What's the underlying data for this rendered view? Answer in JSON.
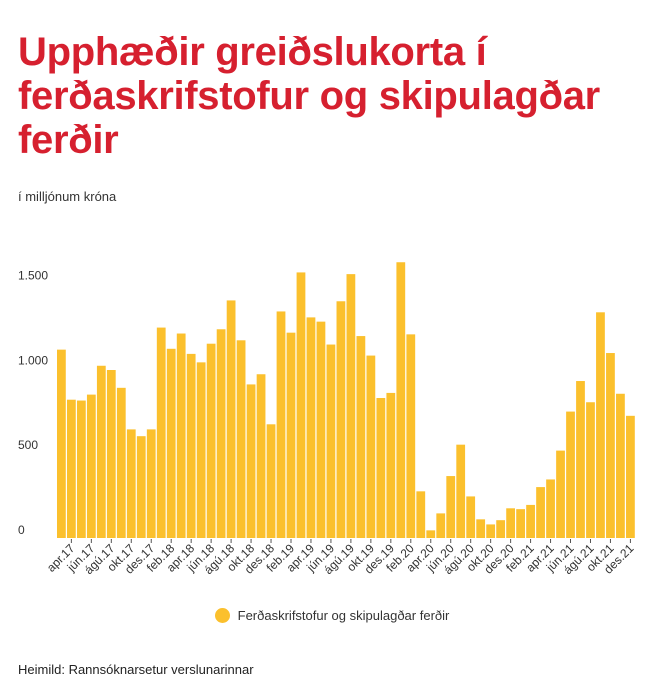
{
  "chart_data": {
    "type": "bar",
    "title": "Upphæðir greiðslukorta í ferðaskrifstofur og skipulagðar ferðir",
    "subtitle": "í milljónum króna",
    "source": "Heimild: Rannsóknarsetur verslunarinnar",
    "series": [
      {
        "name": "Ferðaskrifstofur og skipulagðar ferðir",
        "color": "#fbc02d",
        "values": [
          1110,
          815,
          810,
          845,
          1015,
          990,
          885,
          640,
          600,
          640,
          1240,
          1115,
          1205,
          1085,
          1035,
          1145,
          1230,
          1400,
          1165,
          905,
          965,
          670,
          1335,
          1210,
          1565,
          1300,
          1275,
          1140,
          1395,
          1555,
          1190,
          1075,
          825,
          855,
          1625,
          1200,
          275,
          45,
          145,
          365,
          550,
          245,
          110,
          80,
          105,
          175,
          170,
          195,
          300,
          345,
          515,
          745,
          925,
          800,
          1330,
          1090,
          850,
          720
        ]
      }
    ],
    "x_tick_labels": [
      "apr.17",
      "jún.17",
      "ágú.17",
      "okt.17",
      "des.17",
      "feb.18",
      "apr.18",
      "jún.18",
      "ágú.18",
      "okt.18",
      "des.18",
      "feb.19",
      "apr.19",
      "jún.19",
      "ágú.19",
      "okt.19",
      "des.19",
      "feb.20",
      "apr.20",
      "jún.20",
      "ágú.20",
      "okt.20",
      "des.20",
      "feb.21",
      "apr.21",
      "jún.21",
      "ágú.21",
      "okt.21",
      "des.21"
    ],
    "y_ticks": [
      {
        "value": 0,
        "label": "0"
      },
      {
        "value": 500,
        "label": "500"
      },
      {
        "value": 1000,
        "label": "1.000"
      },
      {
        "value": 1500,
        "label": "1.500"
      }
    ],
    "ylim": [
      0,
      1650
    ],
    "grid": false,
    "legend_position": "bottom-center"
  }
}
